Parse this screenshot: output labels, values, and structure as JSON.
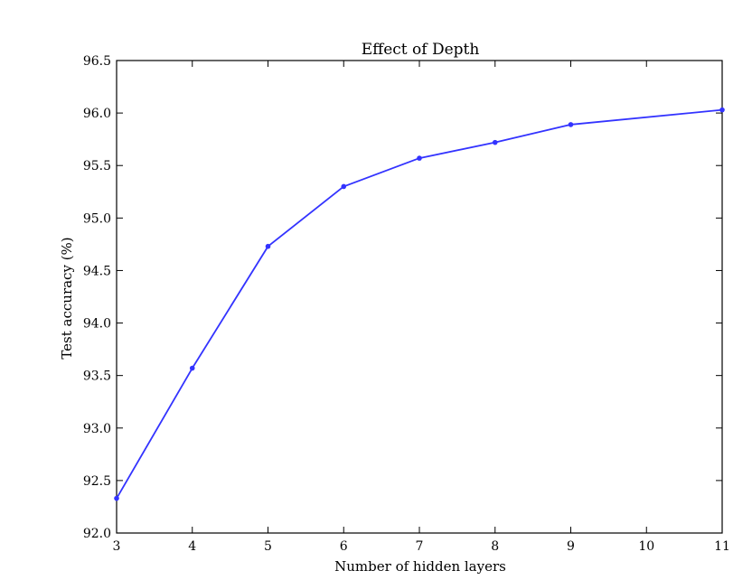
{
  "chart_data": {
    "type": "line",
    "title": "Effect of Depth",
    "xlabel": "Number of hidden layers",
    "ylabel": "Test accuracy (%)",
    "xlim": [
      3,
      11
    ],
    "ylim": [
      92.0,
      96.5
    ],
    "xticks": [
      3,
      4,
      5,
      6,
      7,
      8,
      9,
      10,
      11
    ],
    "xtick_labels": [
      "3",
      "4",
      "5",
      "6",
      "7",
      "8",
      "9",
      "10",
      "11"
    ],
    "yticks": [
      92.0,
      92.5,
      93.0,
      93.5,
      94.0,
      94.5,
      95.0,
      95.5,
      96.0,
      96.5
    ],
    "ytick_labels": [
      "92.0",
      "92.5",
      "93.0",
      "93.5",
      "94.0",
      "94.5",
      "95.0",
      "95.5",
      "96.0",
      "96.5"
    ],
    "grid": false,
    "legend": "none",
    "series": [
      {
        "color": "#3333ff",
        "x": [
          3,
          4,
          5,
          6,
          7,
          8,
          9,
          11
        ],
        "y": [
          92.33,
          93.57,
          94.73,
          95.3,
          95.57,
          95.72,
          95.89,
          96.03
        ]
      }
    ]
  }
}
